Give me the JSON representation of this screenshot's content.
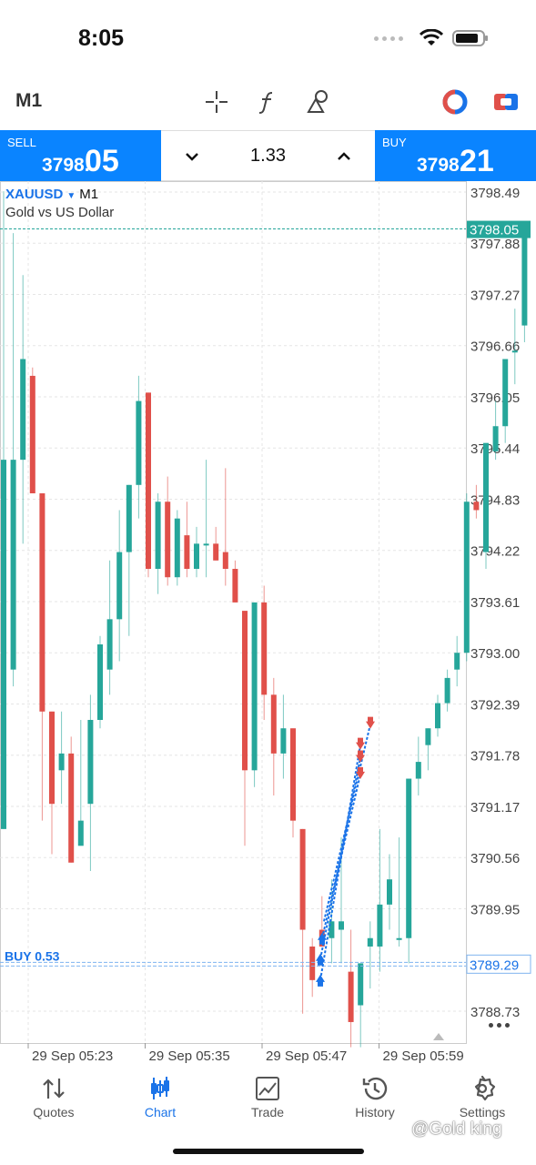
{
  "status_bar": {
    "time": "8:05"
  },
  "toolbar": {
    "timeframe": "M1",
    "icons": [
      "crosshair-icon",
      "function-icon",
      "objects-icon",
      "one-click-trading-icon",
      "quick-trade-icon"
    ]
  },
  "trade_bar": {
    "sell": {
      "label": "SELL",
      "price_small": "3798.",
      "price_big": "05"
    },
    "buy": {
      "label": "BUY",
      "price_small": "3798.",
      "price_big": "21"
    },
    "lot": "1.33"
  },
  "chart": {
    "symbol": "XAUUSD",
    "timeframe": "M1",
    "description": "Gold vs US Dollar",
    "position_label": "BUY 0.53",
    "colors": {
      "bull": "#26a69a",
      "bear": "#e0504a",
      "line": "#1a73e8"
    }
  },
  "chart_data": {
    "type": "candlestick",
    "symbol": "XAUUSD",
    "timeframe": "M1",
    "y_ticks": [
      "3798.49",
      "3797.88",
      "3797.27",
      "3796.66",
      "3796.05",
      "3795.44",
      "3794.83",
      "3794.22",
      "3793.61",
      "3793.00",
      "3792.39",
      "3791.78",
      "3791.17",
      "3790.56",
      "3789.95",
      "3788.73"
    ],
    "ylim": [
      3788.35,
      3798.62
    ],
    "x_ticks": [
      "29 Sep 05:23",
      "29 Sep 05:35",
      "29 Sep 05:47",
      "29 Sep 05:59"
    ],
    "current_price": "3798.05",
    "position_price": "3789.29",
    "position_label": "BUY 0.53",
    "candles": [
      {
        "o": 3790.9,
        "h": 3798.5,
        "l": 3790.9,
        "c": 3795.3
      },
      {
        "o": 3792.8,
        "h": 3798.0,
        "l": 3792.6,
        "c": 3795.3
      },
      {
        "o": 3795.3,
        "h": 3797.5,
        "l": 3794.3,
        "c": 3796.5
      },
      {
        "o": 3796.3,
        "h": 3796.4,
        "l": 3794.9,
        "c": 3794.9
      },
      {
        "o": 3794.9,
        "h": 3794.9,
        "l": 3791.0,
        "c": 3792.3
      },
      {
        "o": 3792.3,
        "h": 3792.3,
        "l": 3790.6,
        "c": 3791.2
      },
      {
        "o": 3791.6,
        "h": 3792.3,
        "l": 3791.2,
        "c": 3791.8
      },
      {
        "o": 3791.8,
        "h": 3792.0,
        "l": 3790.5,
        "c": 3790.5
      },
      {
        "o": 3790.7,
        "h": 3792.2,
        "l": 3790.8,
        "c": 3791.0
      },
      {
        "o": 3791.2,
        "h": 3792.5,
        "l": 3790.4,
        "c": 3792.2
      },
      {
        "o": 3792.2,
        "h": 3793.2,
        "l": 3792.1,
        "c": 3793.1
      },
      {
        "o": 3792.8,
        "h": 3794.1,
        "l": 3792.5,
        "c": 3793.4
      },
      {
        "o": 3793.4,
        "h": 3794.7,
        "l": 3792.9,
        "c": 3794.2
      },
      {
        "o": 3794.2,
        "h": 3795.0,
        "l": 3793.2,
        "c": 3795.0
      },
      {
        "o": 3795.0,
        "h": 3796.3,
        "l": 3794.6,
        "c": 3796.0
      },
      {
        "o": 3796.1,
        "h": 3796.1,
        "l": 3793.9,
        "c": 3794.0
      },
      {
        "o": 3794.0,
        "h": 3794.9,
        "l": 3793.7,
        "c": 3794.8
      },
      {
        "o": 3794.8,
        "h": 3795.1,
        "l": 3793.8,
        "c": 3793.9
      },
      {
        "o": 3793.9,
        "h": 3794.7,
        "l": 3793.8,
        "c": 3794.6
      },
      {
        "o": 3794.4,
        "h": 3794.8,
        "l": 3793.9,
        "c": 3794.0
      },
      {
        "o": 3794.0,
        "h": 3794.5,
        "l": 3793.9,
        "c": 3794.3
      },
      {
        "o": 3794.3,
        "h": 3795.3,
        "l": 3793.9,
        "c": 3794.3
      },
      {
        "o": 3794.3,
        "h": 3794.5,
        "l": 3794.1,
        "c": 3794.1
      },
      {
        "o": 3794.2,
        "h": 3795.2,
        "l": 3793.8,
        "c": 3794.0
      },
      {
        "o": 3794.0,
        "h": 3794.1,
        "l": 3793.6,
        "c": 3793.6
      },
      {
        "o": 3793.5,
        "h": 3793.5,
        "l": 3790.7,
        "c": 3791.6
      },
      {
        "o": 3791.6,
        "h": 3793.6,
        "l": 3791.4,
        "c": 3793.6
      },
      {
        "o": 3793.6,
        "h": 3793.8,
        "l": 3792.2,
        "c": 3792.5
      },
      {
        "o": 3792.5,
        "h": 3792.7,
        "l": 3791.3,
        "c": 3791.8
      },
      {
        "o": 3791.8,
        "h": 3792.5,
        "l": 3791.5,
        "c": 3792.1
      },
      {
        "o": 3792.1,
        "h": 3792.1,
        "l": 3790.8,
        "c": 3791.0
      },
      {
        "o": 3790.9,
        "h": 3790.9,
        "l": 3788.7,
        "c": 3789.7
      },
      {
        "o": 3789.5,
        "h": 3789.6,
        "l": 3788.9,
        "c": 3789.1
      },
      {
        "o": 3789.7,
        "h": 3790.1,
        "l": 3789.5,
        "c": 3789.5
      },
      {
        "o": 3789.6,
        "h": 3790.3,
        "l": 3789.3,
        "c": 3789.8
      },
      {
        "o": 3789.7,
        "h": 3790.8,
        "l": 3789.3,
        "c": 3789.8
      },
      {
        "o": 3789.2,
        "h": 3789.7,
        "l": 3788.3,
        "c": 3788.6
      },
      {
        "o": 3788.8,
        "h": 3789.3,
        "l": 3788.3,
        "c": 3789.3
      },
      {
        "o": 3789.5,
        "h": 3789.8,
        "l": 3789.0,
        "c": 3789.6
      },
      {
        "o": 3789.5,
        "h": 3790.9,
        "l": 3789.2,
        "c": 3790.0
      },
      {
        "o": 3790.0,
        "h": 3790.6,
        "l": 3789.7,
        "c": 3790.3
      },
      {
        "o": 3789.6,
        "h": 3790.8,
        "l": 3789.5,
        "c": 3789.6
      },
      {
        "o": 3789.6,
        "h": 3791.5,
        "l": 3789.3,
        "c": 3791.5
      },
      {
        "o": 3791.5,
        "h": 3792.0,
        "l": 3791.3,
        "c": 3791.7
      },
      {
        "o": 3791.9,
        "h": 3792.1,
        "l": 3791.6,
        "c": 3792.1
      },
      {
        "o": 3792.1,
        "h": 3792.5,
        "l": 3792.0,
        "c": 3792.4
      },
      {
        "o": 3792.4,
        "h": 3792.8,
        "l": 3792.3,
        "c": 3792.7
      },
      {
        "o": 3792.8,
        "h": 3793.2,
        "l": 3792.6,
        "c": 3793.0
      },
      {
        "o": 3793.0,
        "h": 3794.9,
        "l": 3792.9,
        "c": 3794.8
      },
      {
        "o": 3794.8,
        "h": 3795.0,
        "l": 3794.6,
        "c": 3794.7
      },
      {
        "o": 3794.2,
        "h": 3795.5,
        "l": 3794.0,
        "c": 3795.5
      },
      {
        "o": 3795.4,
        "h": 3796.0,
        "l": 3795.3,
        "c": 3795.7
      },
      {
        "o": 3795.7,
        "h": 3796.5,
        "l": 3795.5,
        "c": 3796.5
      },
      {
        "o": 3796.6,
        "h": 3797.1,
        "l": 3796.2,
        "c": 3796.6
      },
      {
        "o": 3796.9,
        "h": 3798.1,
        "l": 3796.7,
        "c": 3798.1
      }
    ]
  },
  "nav": {
    "items": [
      {
        "label": "Quotes",
        "icon": "quotes-icon"
      },
      {
        "label": "Chart",
        "icon": "chart-icon"
      },
      {
        "label": "Trade",
        "icon": "trade-icon"
      },
      {
        "label": "History",
        "icon": "history-icon"
      },
      {
        "label": "Settings",
        "icon": "settings-icon"
      }
    ],
    "active": "Chart"
  },
  "watermark": "@Gold king"
}
